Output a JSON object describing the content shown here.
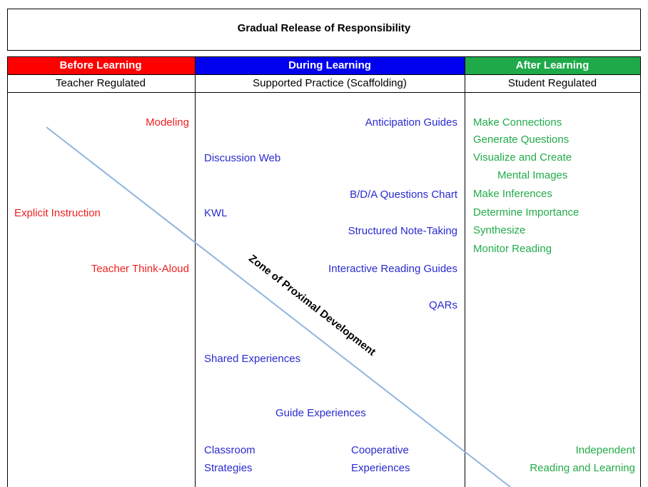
{
  "title": "Gradual Release of Responsibility",
  "zone_label": "Zone of Proximal Development",
  "columns": [
    {
      "header": "Before Learning",
      "subheader": "Teacher Regulated",
      "items": [
        "Modeling",
        "Explicit Instruction",
        "Teacher Think-Aloud"
      ]
    },
    {
      "header": "During Learning",
      "subheader": "Supported Practice (Scaffolding)",
      "items": [
        "Anticipation Guides",
        "Discussion Web",
        "B/D/A Questions Chart",
        "KWL",
        "Structured Note-Taking",
        "Interactive Reading Guides",
        "QARs",
        "Shared Experiences",
        "Guide Experiences",
        [
          "Classroom",
          "Strategies"
        ],
        [
          "Cooperative",
          "Experiences"
        ]
      ]
    },
    {
      "header": "After Learning",
      "subheader": "Student Regulated",
      "items": [
        "Make Connections",
        "Generate Questions",
        [
          "Visualize and Create",
          "Mental Images"
        ],
        "Make Inferences",
        "Determine Importance",
        "Synthesize",
        "Monitor Reading",
        [
          "Independent",
          "Reading and Learning"
        ]
      ]
    }
  ]
}
